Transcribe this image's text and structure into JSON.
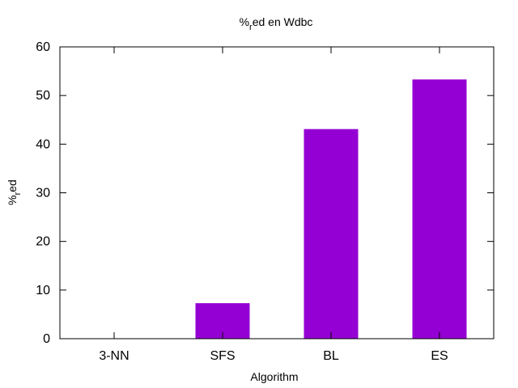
{
  "chart_data": {
    "type": "bar",
    "title": "%_red en Wdbc",
    "title_parts": {
      "prefix": "%",
      "subscript": "r",
      "suffix": "ed en Wdbc"
    },
    "xlabel": "Algorithm",
    "ylabel": "%_red",
    "ylabel_parts": {
      "prefix": "%",
      "subscript": "r",
      "suffix": "ed"
    },
    "categories": [
      "3-NN",
      "SFS",
      "BL",
      "ES"
    ],
    "values": [
      0,
      7.3,
      43.1,
      53.3
    ],
    "ylim": [
      0,
      60
    ],
    "yticks": [
      0,
      10,
      20,
      30,
      40,
      50,
      60
    ],
    "grid": false,
    "bar_color": "#9400d3"
  }
}
